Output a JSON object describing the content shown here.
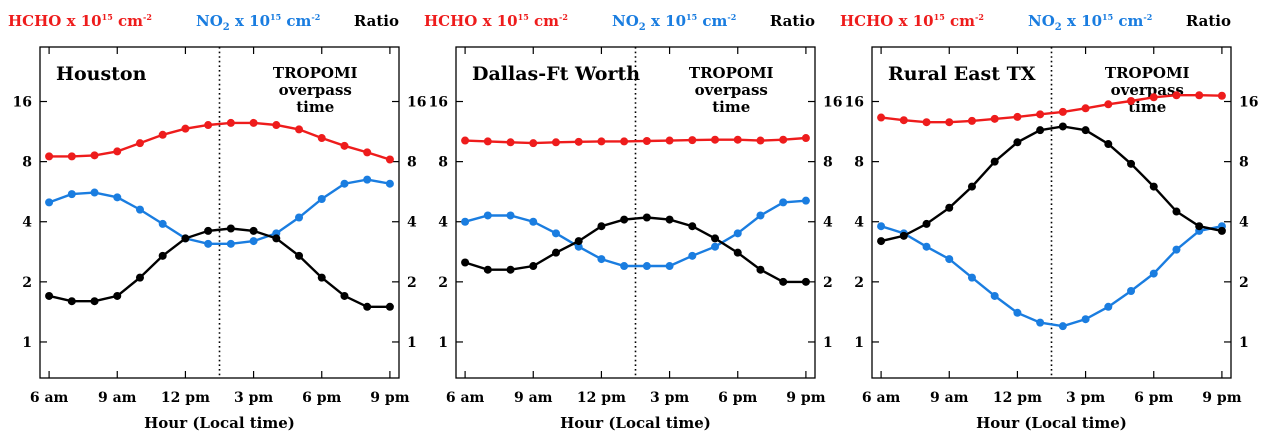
{
  "header": {
    "hcho_label": "HCHO x 10",
    "hcho_exp": "15",
    "hcho_unit": " cm",
    "no2_label": "NO",
    "no2_sub": "2",
    "no2_rest": " x 10",
    "no2_exp": "15",
    "no2_unit": " cm",
    "unit_exp": "-2",
    "ratio_label": "Ratio"
  },
  "annotation": [
    "TROPOMI",
    "overpass",
    "time"
  ],
  "x_axis_label": "Hour (Local time)",
  "colors": {
    "hcho": "#ee1c1c",
    "no2": "#1a7de0",
    "ratio": "#000000",
    "axis": "#000000"
  },
  "chart_data": {
    "type": "line",
    "x": [
      6,
      7,
      8,
      9,
      10,
      11,
      12,
      13,
      14,
      15,
      16,
      17,
      18,
      19,
      20,
      21
    ],
    "x_tick_values": [
      6,
      9,
      12,
      15,
      18,
      21
    ],
    "x_tick_labels": [
      "6 am",
      "9 am",
      "12 pm",
      "3 pm",
      "6 pm",
      "9 pm"
    ],
    "y_tick_values": [
      1,
      2,
      4,
      8,
      16
    ],
    "y_tick_labels": [
      "1",
      "2",
      "4",
      "8",
      "16"
    ],
    "y_scale": "log2",
    "ylim": [
      0.66,
      30
    ],
    "xlim": [
      5.6,
      21.4
    ],
    "overpass_hour": 13.5,
    "panels": [
      {
        "title": "Houston",
        "series": [
          {
            "name": "HCHO",
            "values": [
              8.5,
              8.5,
              8.6,
              9.0,
              9.9,
              10.9,
              11.7,
              12.2,
              12.5,
              12.5,
              12.2,
              11.6,
              10.5,
              9.6,
              8.9,
              8.2
            ]
          },
          {
            "name": "NO2",
            "values": [
              5.0,
              5.5,
              5.6,
              5.3,
              4.6,
              3.9,
              3.3,
              3.1,
              3.1,
              3.2,
              3.5,
              4.2,
              5.2,
              6.2,
              6.5,
              6.2
            ]
          },
          {
            "name": "Ratio",
            "values": [
              1.7,
              1.6,
              1.6,
              1.7,
              2.1,
              2.7,
              3.3,
              3.6,
              3.7,
              3.6,
              3.3,
              2.7,
              2.1,
              1.7,
              1.5,
              1.5
            ]
          }
        ]
      },
      {
        "title": "Dallas-Ft Worth",
        "series": [
          {
            "name": "HCHO",
            "values": [
              10.2,
              10.1,
              10.0,
              9.9,
              10.0,
              10.05,
              10.1,
              10.1,
              10.15,
              10.2,
              10.25,
              10.3,
              10.3,
              10.2,
              10.3,
              10.5
            ]
          },
          {
            "name": "NO2",
            "values": [
              4.0,
              4.3,
              4.3,
              4.0,
              3.5,
              3.0,
              2.6,
              2.4,
              2.4,
              2.4,
              2.7,
              3.0,
              3.5,
              4.3,
              5.0,
              5.1
            ]
          },
          {
            "name": "Ratio",
            "values": [
              2.5,
              2.3,
              2.3,
              2.4,
              2.8,
              3.2,
              3.8,
              4.1,
              4.2,
              4.1,
              3.8,
              3.3,
              2.8,
              2.3,
              2.0,
              2.0
            ]
          }
        ]
      },
      {
        "title": "Rural East TX",
        "series": [
          {
            "name": "HCHO",
            "values": [
              13.3,
              12.9,
              12.6,
              12.6,
              12.8,
              13.1,
              13.4,
              13.8,
              14.2,
              14.8,
              15.5,
              16.1,
              16.8,
              17.2,
              17.2,
              17.1
            ]
          },
          {
            "name": "NO2",
            "values": [
              3.8,
              3.5,
              3.0,
              2.6,
              2.1,
              1.7,
              1.4,
              1.25,
              1.2,
              1.3,
              1.5,
              1.8,
              2.2,
              2.9,
              3.6,
              3.8
            ]
          },
          {
            "name": "Ratio",
            "values": [
              3.2,
              3.4,
              3.9,
              4.7,
              6.0,
              8.0,
              10.0,
              11.5,
              12.0,
              11.5,
              9.8,
              7.8,
              6.0,
              4.5,
              3.8,
              3.6
            ]
          }
        ]
      }
    ]
  }
}
